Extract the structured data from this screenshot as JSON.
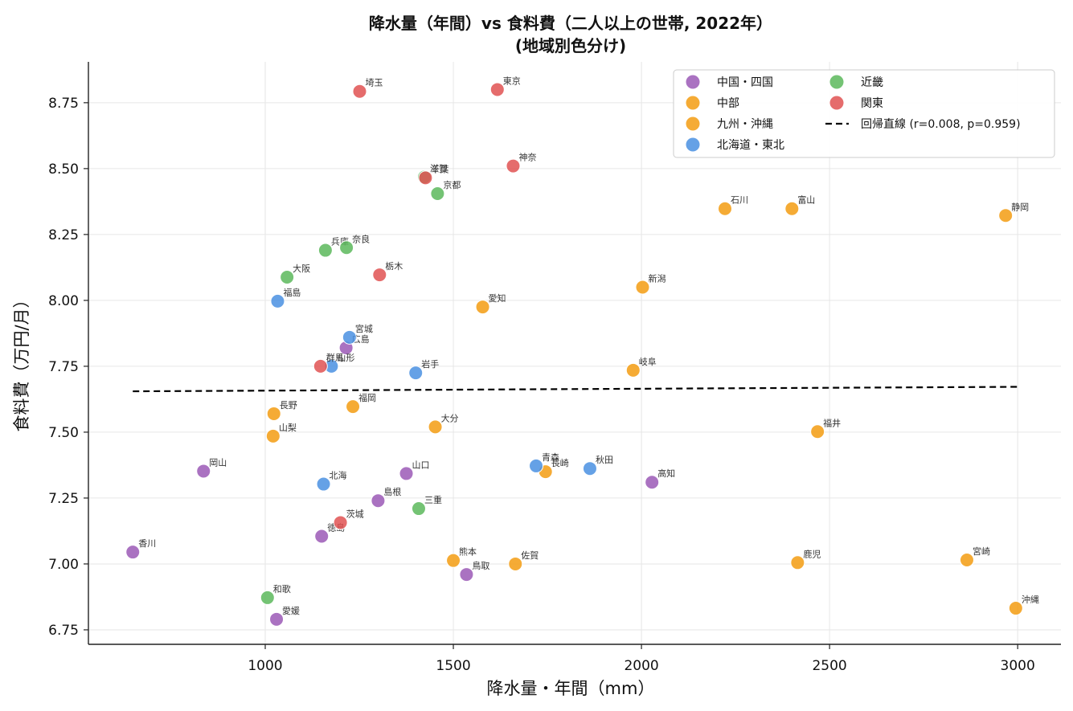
{
  "chart_data": {
    "type": "scatter",
    "title": "降水量（年間）vs 食料費（二人以上の世帯, 2022年）",
    "subtitle": "(地域別色分け)",
    "xlabel": "降水量・年間（mm）",
    "ylabel": "食料費（万円/月）",
    "xlim": [
      530,
      3115
    ],
    "ylim": [
      6.695,
      8.905
    ],
    "xticks": [
      1000,
      1500,
      2000,
      2500,
      3000
    ],
    "yticks": [
      6.75,
      7.0,
      7.25,
      7.5,
      7.75,
      8.0,
      8.25,
      8.5,
      8.75
    ],
    "ytick_labels": [
      "6.75",
      "7.00",
      "7.25",
      "7.50",
      "7.75",
      "8.00",
      "8.25",
      "8.50",
      "8.75"
    ],
    "grid": true,
    "legend_position": "top-right",
    "regression": {
      "label": "回帰直線 (r=0.008, p=0.959)",
      "x": [
        648,
        3000
      ],
      "y": [
        7.655,
        7.672
      ]
    },
    "colors": {
      "中国・四国": "#9b59b6",
      "中部": "#f39c12",
      "九州・沖縄": "#f39c12",
      "北海道・東北": "#4a90e2",
      "近畿": "#5cb85c",
      "関東": "#e05252"
    },
    "legend": [
      {
        "name": "中国・四国",
        "color": "#9b59b6"
      },
      {
        "name": "中部",
        "color": "#f39c12"
      },
      {
        "name": "九州・沖縄",
        "color": "#f39c12"
      },
      {
        "name": "北海道・東北",
        "color": "#4a90e2"
      },
      {
        "name": "近畿",
        "color": "#5cb85c"
      },
      {
        "name": "関東",
        "color": "#e05252"
      }
    ],
    "series": [
      {
        "name": "中国・四国",
        "points": [
          {
            "label": "香川",
            "x": 648,
            "y": 7.045
          },
          {
            "label": "岡山",
            "x": 836,
            "y": 7.352
          },
          {
            "label": "愛媛",
            "x": 1030,
            "y": 6.79
          },
          {
            "label": "徳島",
            "x": 1150,
            "y": 7.105
          },
          {
            "label": "広島",
            "x": 1215,
            "y": 7.82
          },
          {
            "label": "島根",
            "x": 1300,
            "y": 7.24
          },
          {
            "label": "山口",
            "x": 1375,
            "y": 7.343
          },
          {
            "label": "鳥取",
            "x": 1535,
            "y": 6.96
          },
          {
            "label": "高知",
            "x": 2028,
            "y": 7.31
          }
        ]
      },
      {
        "name": "中部",
        "points": [
          {
            "label": "長野",
            "x": 1023,
            "y": 7.57
          },
          {
            "label": "山梨",
            "x": 1021,
            "y": 7.485
          },
          {
            "label": "愛知",
            "x": 1578,
            "y": 7.975
          },
          {
            "label": "岐阜",
            "x": 1978,
            "y": 7.735
          },
          {
            "label": "新潟",
            "x": 2003,
            "y": 8.05
          },
          {
            "label": "石川",
            "x": 2222,
            "y": 8.348
          },
          {
            "label": "富山",
            "x": 2400,
            "y": 8.348
          },
          {
            "label": "福井",
            "x": 2468,
            "y": 7.502
          },
          {
            "label": "静岡",
            "x": 2968,
            "y": 8.322
          }
        ]
      },
      {
        "name": "九州・沖縄",
        "points": [
          {
            "label": "福岡",
            "x": 1233,
            "y": 7.597
          },
          {
            "label": "大分",
            "x": 1452,
            "y": 7.52
          },
          {
            "label": "熊本",
            "x": 1500,
            "y": 7.013
          },
          {
            "label": "佐賀",
            "x": 1665,
            "y": 7.0
          },
          {
            "label": "長崎",
            "x": 1745,
            "y": 7.35
          },
          {
            "label": "鹿児",
            "x": 2415,
            "y": 7.005
          },
          {
            "label": "宮崎",
            "x": 2865,
            "y": 7.015
          },
          {
            "label": "沖縄",
            "x": 2995,
            "y": 6.832
          }
        ]
      },
      {
        "name": "北海道・東北",
        "points": [
          {
            "label": "福島",
            "x": 1033,
            "y": 7.997
          },
          {
            "label": "山形",
            "x": 1176,
            "y": 7.75
          },
          {
            "label": "北海",
            "x": 1155,
            "y": 7.303
          },
          {
            "label": "宮城",
            "x": 1224,
            "y": 7.86
          },
          {
            "label": "岩手",
            "x": 1400,
            "y": 7.725
          },
          {
            "label": "青森",
            "x": 1720,
            "y": 7.372
          },
          {
            "label": "秋田",
            "x": 1863,
            "y": 7.362
          }
        ]
      },
      {
        "name": "近畿",
        "points": [
          {
            "label": "和歌",
            "x": 1006,
            "y": 6.872
          },
          {
            "label": "大阪",
            "x": 1058,
            "y": 8.088
          },
          {
            "label": "兵庫",
            "x": 1160,
            "y": 8.19
          },
          {
            "label": "奈良",
            "x": 1216,
            "y": 8.2
          },
          {
            "label": "三重",
            "x": 1408,
            "y": 7.21
          },
          {
            "label": "滋賀",
            "x": 1423,
            "y": 8.468
          },
          {
            "label": "京都",
            "x": 1458,
            "y": 8.405
          }
        ]
      },
      {
        "name": "関東",
        "points": [
          {
            "label": "群馬",
            "x": 1147,
            "y": 7.75
          },
          {
            "label": "茨城",
            "x": 1200,
            "y": 7.157
          },
          {
            "label": "埼玉",
            "x": 1251,
            "y": 8.793
          },
          {
            "label": "栃木",
            "x": 1304,
            "y": 8.097
          },
          {
            "label": "千葉",
            "x": 1426,
            "y": 8.465
          },
          {
            "label": "東京",
            "x": 1617,
            "y": 8.8
          },
          {
            "label": "神奈",
            "x": 1659,
            "y": 8.51
          }
        ]
      }
    ]
  }
}
